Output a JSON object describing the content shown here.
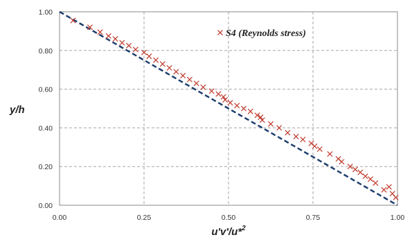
{
  "chart_data": {
    "type": "scatter",
    "xlabel": "u'v'/u*",
    "xlabel_superscript": "2",
    "ylabel": "y/h",
    "xlim": [
      0,
      1
    ],
    "ylim": [
      0,
      1
    ],
    "xticks": [
      "0.00",
      "0.25",
      "0.50",
      "0.75",
      "1.00"
    ],
    "yticks": [
      "0.00",
      "0.20",
      "0.40",
      "0.60",
      "0.80",
      "1.00"
    ],
    "grid": true,
    "legend_position": "top-right",
    "series": [
      {
        "name": "S4 (Reynolds stress)",
        "marker": "x",
        "color": "#c0392b",
        "points": [
          [
            0.04,
            0.955
          ],
          [
            0.09,
            0.92
          ],
          [
            0.12,
            0.895
          ],
          [
            0.145,
            0.875
          ],
          [
            0.165,
            0.86
          ],
          [
            0.185,
            0.84
          ],
          [
            0.205,
            0.825
          ],
          [
            0.225,
            0.805
          ],
          [
            0.25,
            0.79
          ],
          [
            0.265,
            0.77
          ],
          [
            0.285,
            0.75
          ],
          [
            0.305,
            0.73
          ],
          [
            0.325,
            0.71
          ],
          [
            0.345,
            0.69
          ],
          [
            0.365,
            0.67
          ],
          [
            0.385,
            0.65
          ],
          [
            0.405,
            0.63
          ],
          [
            0.425,
            0.61
          ],
          [
            0.45,
            0.59
          ],
          [
            0.47,
            0.575
          ],
          [
            0.485,
            0.56
          ],
          [
            0.49,
            0.545
          ],
          [
            0.505,
            0.53
          ],
          [
            0.525,
            0.515
          ],
          [
            0.545,
            0.5
          ],
          [
            0.565,
            0.485
          ],
          [
            0.585,
            0.465
          ],
          [
            0.595,
            0.455
          ],
          [
            0.6,
            0.44
          ],
          [
            0.625,
            0.42
          ],
          [
            0.65,
            0.4
          ],
          [
            0.675,
            0.375
          ],
          [
            0.7,
            0.355
          ],
          [
            0.72,
            0.34
          ],
          [
            0.745,
            0.32
          ],
          [
            0.755,
            0.305
          ],
          [
            0.77,
            0.29
          ],
          [
            0.8,
            0.265
          ],
          [
            0.825,
            0.24
          ],
          [
            0.835,
            0.225
          ],
          [
            0.86,
            0.2
          ],
          [
            0.875,
            0.185
          ],
          [
            0.89,
            0.17
          ],
          [
            0.905,
            0.15
          ],
          [
            0.92,
            0.135
          ],
          [
            0.935,
            0.115
          ],
          [
            0.96,
            0.08
          ],
          [
            0.975,
            0.095
          ],
          [
            0.985,
            0.06
          ],
          [
            0.995,
            0.04
          ]
        ]
      },
      {
        "name": "",
        "style": "dashed-line",
        "color": "#1f3f6e",
        "points": [
          [
            0,
            1
          ],
          [
            1,
            0
          ]
        ]
      }
    ]
  }
}
